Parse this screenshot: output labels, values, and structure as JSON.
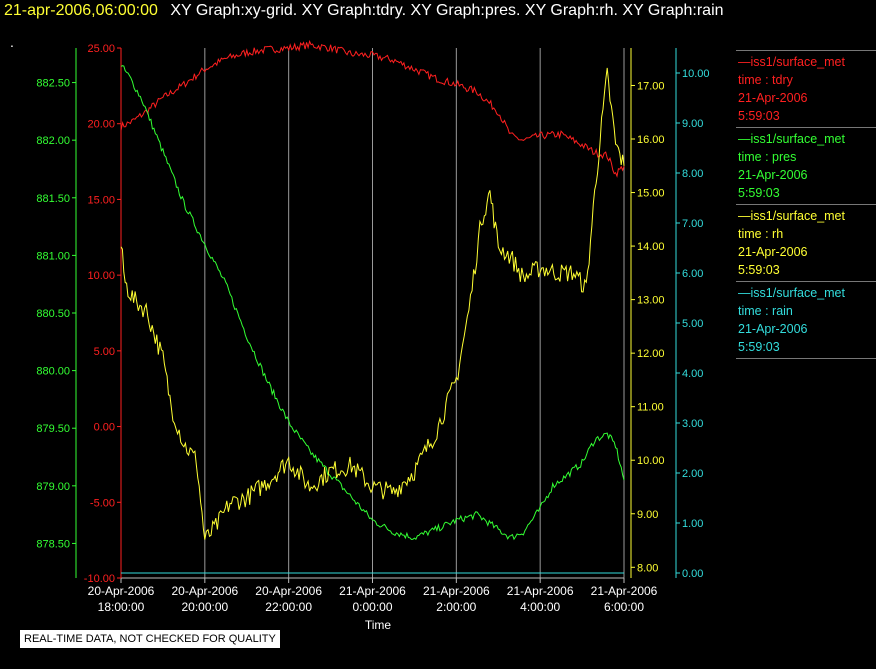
{
  "header": {
    "date_label": "21-apr-2006,06:00:00",
    "graphs_label": "XY Graph:xy-grid.  XY Graph:tdry.  XY Graph:pres.  XY Graph:rh.  XY Graph:rain",
    "dot": "."
  },
  "footer": {
    "quality_note": "REAL-TIME DATA, NOT CHECKED FOR QUALITY"
  },
  "legend": [
    {
      "source": "—iss1/surface_met",
      "variable": "time : tdry",
      "date": "21-Apr-2006",
      "time": "5:59:03",
      "color": "#ff2020"
    },
    {
      "source": "—iss1/surface_met",
      "variable": "time : pres",
      "date": "21-Apr-2006",
      "time": "5:59:03",
      "color": "#33ff33"
    },
    {
      "source": "—iss1/surface_met",
      "variable": "time : rh",
      "date": "21-Apr-2006",
      "time": "5:59:03",
      "color": "#ffff33"
    },
    {
      "source": "—iss1/surface_met",
      "variable": "time : rain",
      "date": "21-Apr-2006",
      "time": "5:59:03",
      "color": "#33dddd"
    }
  ],
  "chart_data": {
    "type": "line",
    "xlabel": "Time",
    "xlim_hours": [
      18.0,
      30.0
    ],
    "x_ticks": [
      {
        "hour": 18,
        "date": "20-Apr-2006",
        "time": "18:00:00"
      },
      {
        "hour": 20,
        "date": "20-Apr-2006",
        "time": "20:00:00"
      },
      {
        "hour": 22,
        "date": "20-Apr-2006",
        "time": "22:00:00"
      },
      {
        "hour": 24,
        "date": "21-Apr-2006",
        "time": "0:00:00"
      },
      {
        "hour": 26,
        "date": "21-Apr-2006",
        "time": "2:00:00"
      },
      {
        "hour": 28,
        "date": "21-Apr-2006",
        "time": "4:00:00"
      },
      {
        "hour": 30,
        "date": "21-Apr-2006",
        "time": "6:00:00"
      }
    ],
    "grid": true,
    "axes": {
      "tdry": {
        "color": "#ff2020",
        "ylim": [
          -10,
          25
        ],
        "ticks": [
          "-10.00",
          "-5.00",
          "0.00",
          "5.00",
          "10.00",
          "15.00",
          "20.00",
          "25.00"
        ]
      },
      "pres": {
        "color": "#33ff33",
        "ylim": [
          878.2,
          882.8
        ],
        "ticks": [
          "878.50",
          "879.00",
          "879.50",
          "880.00",
          "880.50",
          "881.00",
          "881.50",
          "882.00",
          "882.50"
        ]
      },
      "rh": {
        "color": "#ffff33",
        "ylim": [
          7.8,
          17.7
        ],
        "ticks": [
          "8.00",
          "9.00",
          "10.00",
          "11.00",
          "12.00",
          "13.00",
          "14.00",
          "15.00",
          "16.00",
          "17.00"
        ]
      },
      "rain": {
        "color": "#33dddd",
        "ylim": [
          -0.1,
          10.5
        ],
        "ticks": [
          "0.00",
          "1.00",
          "2.00",
          "3.00",
          "4.00",
          "5.00",
          "6.00",
          "7.00",
          "8.00",
          "9.00",
          "10.00"
        ]
      }
    },
    "series": [
      {
        "name": "time : tdry",
        "axis": "tdry",
        "points": [
          [
            18.0,
            19.8
          ],
          [
            18.3,
            20.2
          ],
          [
            18.6,
            20.8
          ],
          [
            19.0,
            21.7
          ],
          [
            19.5,
            22.6
          ],
          [
            20.0,
            23.6
          ],
          [
            20.5,
            24.3
          ],
          [
            21.0,
            24.7
          ],
          [
            21.5,
            24.9
          ],
          [
            22.0,
            25.0
          ],
          [
            22.5,
            25.2
          ],
          [
            23.0,
            25.0
          ],
          [
            23.5,
            24.6
          ],
          [
            24.0,
            24.5
          ],
          [
            24.5,
            24.2
          ],
          [
            25.0,
            23.6
          ],
          [
            25.5,
            23.0
          ],
          [
            26.0,
            22.6
          ],
          [
            26.5,
            22.1
          ],
          [
            27.0,
            20.8
          ],
          [
            27.3,
            19.2
          ],
          [
            27.6,
            18.9
          ],
          [
            28.0,
            19.2
          ],
          [
            28.5,
            19.3
          ],
          [
            29.0,
            18.6
          ],
          [
            29.3,
            18.1
          ],
          [
            29.6,
            17.9
          ],
          [
            29.8,
            16.7
          ],
          [
            30.0,
            17.2
          ]
        ]
      },
      {
        "name": "time : pres",
        "axis": "pres",
        "points": [
          [
            18.0,
            882.65
          ],
          [
            18.2,
            882.55
          ],
          [
            18.5,
            882.35
          ],
          [
            19.0,
            881.9
          ],
          [
            19.5,
            881.45
          ],
          [
            20.0,
            881.1
          ],
          [
            20.5,
            880.75
          ],
          [
            21.0,
            880.3
          ],
          [
            21.5,
            879.9
          ],
          [
            22.0,
            879.55
          ],
          [
            22.5,
            879.3
          ],
          [
            23.0,
            879.1
          ],
          [
            23.5,
            878.9
          ],
          [
            24.0,
            878.7
          ],
          [
            24.5,
            878.6
          ],
          [
            25.0,
            878.55
          ],
          [
            25.5,
            878.62
          ],
          [
            26.0,
            878.7
          ],
          [
            26.5,
            878.75
          ],
          [
            27.0,
            878.62
          ],
          [
            27.3,
            878.55
          ],
          [
            27.6,
            878.6
          ],
          [
            28.0,
            878.8
          ],
          [
            28.3,
            879.0
          ],
          [
            28.6,
            879.08
          ],
          [
            29.0,
            879.2
          ],
          [
            29.3,
            879.4
          ],
          [
            29.6,
            879.45
          ],
          [
            29.8,
            879.35
          ],
          [
            30.0,
            879.05
          ]
        ]
      },
      {
        "name": "time : rh",
        "axis": "rh",
        "points": [
          [
            18.0,
            14.0
          ],
          [
            18.1,
            13.3
          ],
          [
            18.3,
            13.0
          ],
          [
            18.6,
            12.8
          ],
          [
            19.0,
            11.9
          ],
          [
            19.2,
            11.0
          ],
          [
            19.5,
            10.3
          ],
          [
            19.8,
            10.0
          ],
          [
            20.0,
            8.5
          ],
          [
            20.3,
            8.8
          ],
          [
            20.6,
            9.2
          ],
          [
            21.0,
            9.3
          ],
          [
            21.5,
            9.6
          ],
          [
            22.0,
            10.0
          ],
          [
            22.5,
            9.5
          ],
          [
            23.0,
            9.8
          ],
          [
            23.5,
            9.9
          ],
          [
            24.0,
            9.5
          ],
          [
            24.5,
            9.4
          ],
          [
            25.0,
            9.8
          ],
          [
            25.5,
            10.5
          ],
          [
            26.0,
            11.5
          ],
          [
            26.3,
            12.8
          ],
          [
            26.6,
            14.5
          ],
          [
            26.8,
            15.0
          ],
          [
            27.0,
            14.0
          ],
          [
            27.3,
            13.8
          ],
          [
            27.6,
            13.4
          ],
          [
            28.0,
            13.6
          ],
          [
            28.4,
            13.5
          ],
          [
            28.8,
            13.5
          ],
          [
            29.1,
            13.2
          ],
          [
            29.3,
            15.0
          ],
          [
            29.5,
            16.5
          ],
          [
            29.6,
            17.2
          ],
          [
            29.8,
            15.9
          ],
          [
            30.0,
            15.5
          ]
        ]
      },
      {
        "name": "time : rain",
        "axis": "rain",
        "points": [
          [
            18.0,
            0.0
          ],
          [
            30.0,
            0.0
          ]
        ]
      }
    ]
  }
}
